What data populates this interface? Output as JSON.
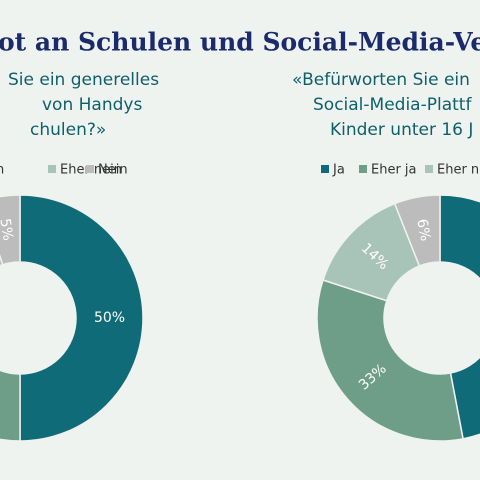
{
  "title": "ot an Schulen und Social-Media-Verbo",
  "chart_data": [
    {
      "type": "donut",
      "subtitle": [
        "Sie ein generelles",
        "von Handys",
        "chulen?»"
      ],
      "categories": [
        null,
        "n",
        "Eher nein",
        "Nein"
      ],
      "colors": [
        "#0f6b78",
        "#6e9e87",
        "#a8c3b7",
        "#bcbcbc"
      ],
      "values": [
        50,
        30,
        15,
        5
      ],
      "value_labels": [
        "50%",
        null,
        null,
        "5%"
      ]
    },
    {
      "type": "donut",
      "subtitle": [
        "«Befürworten Sie ein",
        "Social-Media-Plattf",
        "Kinder unter 16 J"
      ],
      "categories": [
        "Ja",
        "Eher ja",
        "Eher n",
        null
      ],
      "colors": [
        "#0f6b78",
        "#6e9e87",
        "#a8c3b7",
        "#bcbcbc"
      ],
      "values": [
        47,
        33,
        14,
        6
      ],
      "value_labels": [
        null,
        "33%",
        "14%",
        "6%"
      ]
    }
  ]
}
